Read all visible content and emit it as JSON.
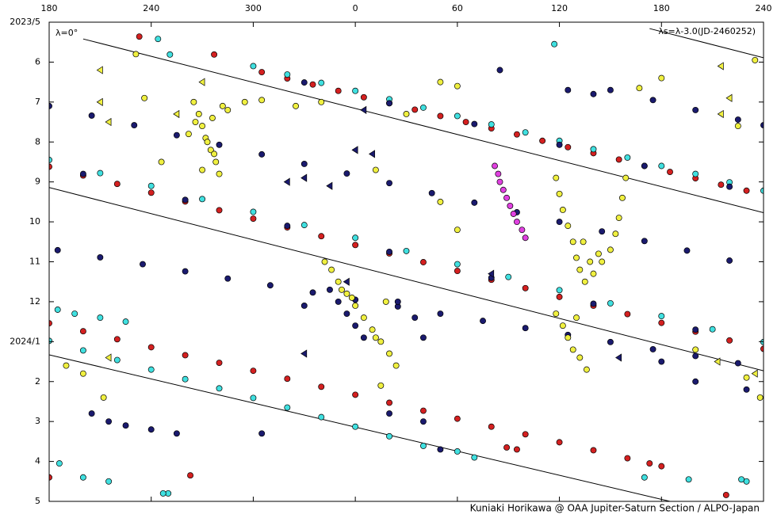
{
  "chart_data": {
    "type": "scatter",
    "annotations": [
      "λ=0°",
      "λs=λ-3.0(JD-2460252)"
    ],
    "credit": "Kuniaki Horikawa @ OAA Jupiter-Saturn Section / ALPO-Japan",
    "xlim": [
      180,
      600
    ],
    "xticks": [
      180,
      240,
      300,
      {
        "value": 360,
        "label": "0"
      },
      {
        "value": 420,
        "label": "60"
      },
      {
        "value": 480,
        "label": "120"
      },
      {
        "value": 540,
        "label": "180"
      },
      {
        "value": 600,
        "label": "240"
      }
    ],
    "ylim": [
      12,
      0
    ],
    "yticks": [
      {
        "value": 0,
        "label": "2023/5"
      },
      {
        "value": 1,
        "label": "6"
      },
      {
        "value": 2,
        "label": "7"
      },
      {
        "value": 3,
        "label": "8"
      },
      {
        "value": 4,
        "label": "9"
      },
      {
        "value": 5,
        "label": "10"
      },
      {
        "value": 6,
        "label": "11"
      },
      {
        "value": 7,
        "label": "12"
      },
      {
        "value": 8,
        "label": "2024/1"
      },
      {
        "value": 9,
        "label": "2"
      },
      {
        "value": 10,
        "label": "3"
      },
      {
        "value": 11,
        "label": "4"
      },
      {
        "value": 12,
        "label": "5"
      }
    ],
    "lines": [
      {
        "color": "#000000",
        "x": [
          200,
          600
        ],
        "y": [
          0.42,
          4.77
        ]
      },
      {
        "color": "#000000",
        "x": [
          180,
          600
        ],
        "y": [
          4.14,
          8.73
        ]
      },
      {
        "color": "#000000",
        "x": [
          180,
          545
        ],
        "y": [
          8.33,
          12
        ]
      },
      {
        "color": "#000000",
        "x": [
          533,
          600
        ],
        "y": [
          0.16,
          0.89
        ]
      }
    ],
    "series": [
      {
        "color": "#d42020",
        "marker": "circle",
        "x": [
          305,
          320,
          335,
          350,
          365,
          380,
          395,
          410,
          425,
          440,
          455,
          470,
          485,
          500,
          515,
          530,
          545,
          560,
          575,
          590,
          180,
          200,
          220,
          240,
          260,
          280,
          300,
          320,
          340,
          360,
          380,
          400,
          420,
          440,
          460,
          480,
          500,
          520,
          540,
          560,
          580,
          600,
          180,
          200,
          220,
          240,
          260,
          280,
          300,
          320,
          340,
          360,
          380,
          400,
          420,
          440,
          460,
          480,
          500,
          520,
          540,
          233,
          277,
          263,
          533,
          180,
          578,
          449,
          455
        ],
        "y": [
          1.25,
          1.41,
          1.56,
          1.72,
          1.88,
          2.03,
          2.19,
          2.35,
          2.5,
          2.66,
          2.81,
          2.97,
          3.13,
          3.28,
          3.44,
          3.6,
          3.75,
          3.91,
          4.07,
          4.22,
          3.62,
          3.84,
          4.05,
          4.27,
          4.49,
          4.71,
          4.92,
          5.14,
          5.36,
          5.58,
          5.79,
          6.01,
          6.23,
          6.45,
          6.66,
          6.88,
          7.1,
          7.31,
          7.53,
          7.75,
          7.97,
          8.18,
          7.54,
          7.74,
          7.94,
          8.14,
          8.34,
          8.53,
          8.73,
          8.93,
          9.13,
          9.33,
          9.53,
          9.73,
          9.93,
          10.13,
          10.32,
          10.52,
          10.72,
          10.92,
          11.12,
          0.36,
          0.81,
          11.35,
          11.05,
          11.4,
          11.84,
          10.65,
          10.7
        ]
      },
      {
        "color": "#40e0e0",
        "marker": "circle",
        "x": [
          300,
          320,
          340,
          360,
          380,
          400,
          420,
          440,
          460,
          480,
          500,
          520,
          540,
          560,
          580,
          600,
          180,
          210,
          240,
          270,
          300,
          330,
          360,
          390,
          420,
          450,
          480,
          510,
          540,
          570,
          600,
          180,
          200,
          220,
          240,
          260,
          280,
          300,
          320,
          340,
          360,
          380,
          400,
          185,
          195,
          210,
          225,
          200,
          215,
          250,
          530,
          590,
          244,
          251,
          477,
          247,
          420,
          430,
          556,
          587,
          186
        ],
        "y": [
          1.1,
          1.31,
          1.52,
          1.72,
          1.93,
          2.14,
          2.35,
          2.56,
          2.76,
          2.97,
          3.18,
          3.39,
          3.6,
          3.8,
          4.01,
          4.22,
          3.45,
          3.78,
          4.1,
          4.43,
          4.75,
          5.08,
          5.4,
          5.73,
          6.06,
          6.38,
          6.71,
          7.04,
          7.36,
          7.69,
          8.01,
          7.98,
          8.22,
          8.46,
          8.7,
          8.94,
          9.17,
          9.41,
          9.65,
          9.89,
          10.13,
          10.37,
          10.61,
          7.2,
          7.3,
          7.4,
          7.5,
          11.4,
          11.5,
          11.8,
          11.4,
          11.5,
          0.42,
          0.81,
          0.55,
          11.8,
          10.75,
          10.9,
          11.45,
          11.45,
          11.05
        ]
      },
      {
        "color": "#1a1a6e",
        "marker": "circle",
        "x": [
          180,
          205,
          230,
          255,
          280,
          305,
          330,
          355,
          380,
          405,
          430,
          455,
          480,
          505,
          530,
          555,
          580,
          510,
          535,
          560,
          585,
          600,
          185,
          210,
          235,
          260,
          285,
          310,
          335,
          360,
          385,
          410,
          435,
          460,
          485,
          510,
          535,
          560,
          585,
          350,
          355,
          360,
          365,
          345,
          385,
          395,
          400,
          330,
          205,
          215,
          225,
          240,
          255,
          380,
          400,
          445,
          485,
          500,
          410,
          540,
          560,
          590,
          305,
          330,
          380,
          430,
          480,
          530,
          580,
          200,
          260,
          320,
          380,
          440,
          500,
          560
        ],
        "y": [
          2.1,
          2.34,
          2.58,
          2.83,
          3.07,
          3.31,
          3.55,
          3.79,
          4.03,
          4.28,
          4.52,
          4.76,
          5.0,
          5.24,
          5.48,
          5.72,
          5.97,
          1.7,
          1.95,
          2.2,
          2.44,
          2.58,
          5.71,
          5.89,
          6.06,
          6.24,
          6.42,
          6.59,
          6.77,
          6.95,
          7.12,
          7.3,
          7.48,
          7.66,
          7.83,
          8.01,
          8.19,
          8.36,
          8.54,
          7.0,
          7.3,
          7.6,
          7.9,
          6.7,
          7.0,
          7.4,
          7.9,
          7.1,
          9.8,
          10.0,
          10.1,
          10.2,
          10.3,
          9.8,
          10.0,
          1.2,
          1.7,
          1.8,
          10.7,
          8.5,
          9.0,
          9.2,
          10.3,
          1.51,
          2.03,
          2.55,
          3.07,
          3.6,
          4.12,
          3.8,
          4.45,
          5.1,
          5.75,
          6.4,
          7.05,
          7.7
        ]
      },
      {
        "color": "#f0f040",
        "marker": "circle",
        "x": [
          265,
          268,
          270,
          272,
          275,
          278,
          280,
          266,
          273,
          277,
          282,
          285,
          262,
          270,
          276,
          246,
          231,
          236,
          295,
          305,
          325,
          340,
          390,
          410,
          420,
          527,
          540,
          595,
          585,
          478,
          480,
          482,
          485,
          488,
          490,
          492,
          495,
          500,
          505,
          510,
          513,
          515,
          517,
          519,
          503,
          498,
          494,
          342,
          346,
          350,
          355,
          360,
          365,
          370,
          375,
          380,
          384,
          352,
          358,
          372,
          378,
          478,
          482,
          485,
          488,
          492,
          496,
          490,
          190,
          200,
          212,
          590,
          598,
          560,
          375,
          420,
          410,
          372
        ],
        "y": [
          2.0,
          2.3,
          2.6,
          2.9,
          3.2,
          3.5,
          3.8,
          2.5,
          3.0,
          3.3,
          2.1,
          2.2,
          2.8,
          3.7,
          2.4,
          3.5,
          0.8,
          1.9,
          2.0,
          1.95,
          2.1,
          2.0,
          2.3,
          1.5,
          1.6,
          1.65,
          1.4,
          0.95,
          2.6,
          3.9,
          4.3,
          4.7,
          5.1,
          5.5,
          5.9,
          6.2,
          6.5,
          6.3,
          6.0,
          5.7,
          5.3,
          4.9,
          4.4,
          3.9,
          5.8,
          6.0,
          5.5,
          6.0,
          6.2,
          6.5,
          6.8,
          7.1,
          7.4,
          7.7,
          8.0,
          8.3,
          8.6,
          6.7,
          6.9,
          7.9,
          7.0,
          7.3,
          7.6,
          7.9,
          8.2,
          8.4,
          8.7,
          7.4,
          8.6,
          8.8,
          9.4,
          8.9,
          9.4,
          8.2,
          9.1,
          5.2,
          4.5,
          3.7
        ]
      },
      {
        "color": "#e040e0",
        "marker": "circle",
        "x": [
          442,
          444,
          445,
          447,
          449,
          451,
          453,
          455,
          458,
          460
        ],
        "y": [
          3.6,
          3.8,
          4.0,
          4.2,
          4.4,
          4.6,
          4.8,
          5.0,
          5.2,
          5.4
        ]
      },
      {
        "color": "#1a1a6e",
        "marker": "triangle",
        "x": [
          320,
          330,
          345,
          360,
          365,
          370,
          355,
          330,
          515,
          440
        ],
        "y": [
          4.0,
          3.9,
          4.1,
          3.2,
          2.2,
          3.3,
          6.5,
          8.3,
          8.4,
          6.3
        ]
      },
      {
        "color": "#f0f040",
        "marker": "triangle",
        "x": [
          210,
          210,
          215,
          255,
          270,
          575,
          575,
          580,
          215,
          573,
          595
        ],
        "y": [
          1.2,
          2.0,
          2.5,
          2.3,
          1.5,
          1.1,
          2.3,
          1.9,
          8.4,
          8.5,
          8.8
        ]
      }
    ]
  }
}
